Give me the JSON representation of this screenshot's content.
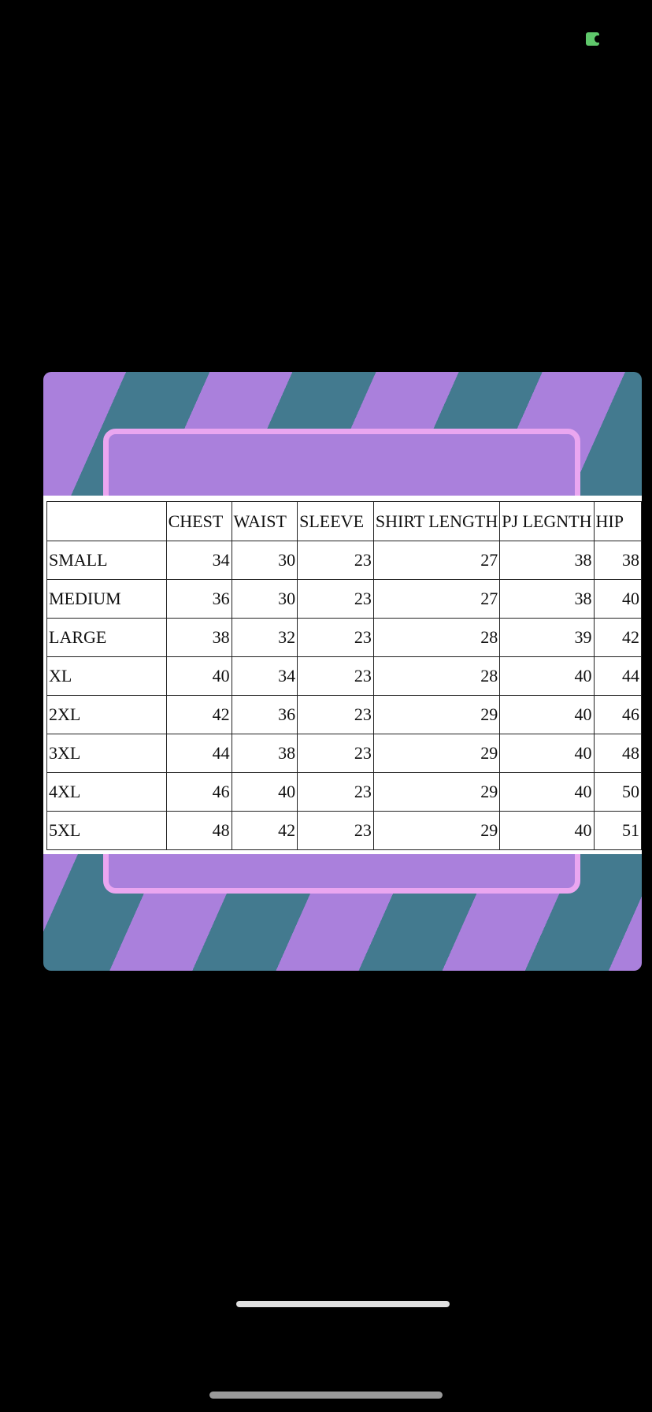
{
  "colors": {
    "stripe_teal": "#437a8f",
    "stripe_purple": "#aa80dc",
    "panel_border": "#eaa6f0",
    "status_icon": "#5fc86b"
  },
  "table": {
    "headers": [
      "",
      "CHEST",
      "WAIST",
      "SLEEVE",
      "SHIRT LENGTH",
      "PJ LEGNTH",
      "HIP"
    ],
    "rows": [
      [
        "SMALL",
        "34",
        "30",
        "23",
        "27",
        "38",
        "38"
      ],
      [
        "MEDIUM",
        "36",
        "30",
        "23",
        "27",
        "38",
        "40"
      ],
      [
        "LARGE",
        "38",
        "32",
        "23",
        "28",
        "39",
        "42"
      ],
      [
        "XL",
        "40",
        "34",
        "23",
        "28",
        "40",
        "44"
      ],
      [
        "2XL",
        "42",
        "36",
        "23",
        "29",
        "40",
        "46"
      ],
      [
        "3XL",
        "44",
        "38",
        "23",
        "29",
        "40",
        "48"
      ],
      [
        "4XL",
        "46",
        "40",
        "23",
        "29",
        "40",
        "50"
      ],
      [
        "5XL",
        "48",
        "42",
        "23",
        "29",
        "40",
        "51"
      ]
    ]
  }
}
